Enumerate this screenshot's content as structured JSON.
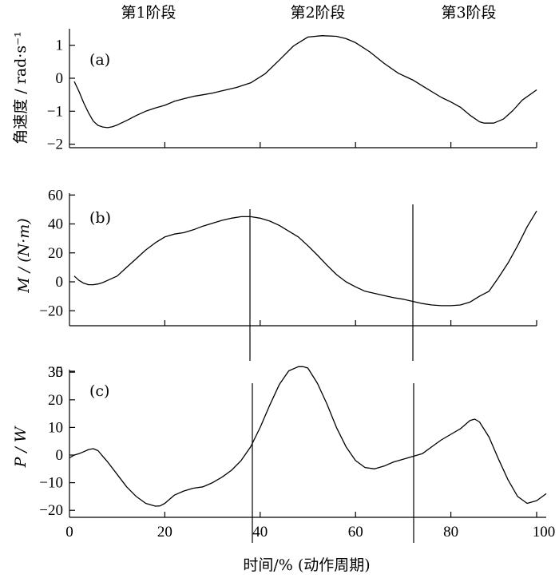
{
  "stage_labels": [
    "第1阶段",
    "第2阶段",
    "第3阶段"
  ],
  "xlabel": "时间/% (动作周期)",
  "chart_data": [
    {
      "type": "line",
      "panel_label": "(a)",
      "ylabel": "角速度 / rad·s⁻¹",
      "xlim": [
        0,
        100
      ],
      "ylim": [
        -2,
        1.5
      ],
      "yticks": [
        -2,
        -1,
        0,
        1
      ],
      "xticks": [
        0,
        20,
        40,
        60,
        80,
        100
      ],
      "x": [
        1,
        2,
        3,
        4,
        5,
        6,
        7,
        8,
        9,
        10,
        12,
        14,
        16,
        18,
        20,
        22,
        24,
        26,
        28,
        30,
        32,
        35,
        38,
        41,
        44,
        47,
        50,
        53,
        56,
        58,
        60,
        63,
        66,
        69,
        72,
        75,
        78,
        80,
        82,
        84,
        86,
        87,
        89,
        91,
        93,
        95,
        98
      ],
      "values": [
        -0.1,
        -0.4,
        -0.75,
        -1.05,
        -1.3,
        -1.43,
        -1.48,
        -1.5,
        -1.47,
        -1.42,
        -1.28,
        -1.13,
        -1.0,
        -0.9,
        -0.82,
        -0.7,
        -0.62,
        -0.55,
        -0.5,
        -0.45,
        -0.38,
        -0.28,
        -0.14,
        0.13,
        0.55,
        0.98,
        1.25,
        1.29,
        1.27,
        1.2,
        1.08,
        0.8,
        0.45,
        0.15,
        -0.05,
        -0.32,
        -0.58,
        -0.72,
        -0.88,
        -1.12,
        -1.32,
        -1.36,
        -1.36,
        -1.24,
        -0.98,
        -0.66,
        -0.35
      ]
    },
    {
      "type": "line",
      "panel_label": "(b)",
      "ylabel": "M / (N·m)",
      "xlim": [
        0,
        100
      ],
      "ylim": [
        -20,
        60
      ],
      "yticks": [
        -20,
        0,
        20,
        40,
        60
      ],
      "xticks": [
        0,
        20,
        40,
        60,
        80,
        100
      ],
      "x": [
        1,
        2,
        3,
        4,
        5,
        6,
        7,
        8,
        10,
        12,
        14,
        16,
        18,
        20,
        22,
        24,
        26,
        28,
        30,
        32,
        34,
        36,
        38,
        40,
        42,
        44,
        46,
        48,
        50,
        52,
        54,
        56,
        58,
        60,
        62,
        64,
        66,
        68,
        70,
        72,
        74,
        76,
        78,
        80,
        82,
        84,
        86,
        88,
        90,
        92,
        94,
        96,
        98
      ],
      "values": [
        4,
        1,
        -1,
        -2,
        -2,
        -1.5,
        -0.5,
        1,
        4,
        10,
        16,
        22,
        27,
        31,
        33,
        34,
        36,
        38.5,
        40.5,
        42.5,
        44,
        45,
        45,
        44,
        42,
        39,
        35,
        31,
        25,
        18.5,
        11.5,
        5,
        0,
        -3.5,
        -6.5,
        -8,
        -9.5,
        -11,
        -12,
        -13.5,
        -15,
        -16,
        -16.5,
        -16.5,
        -16,
        -14,
        -10,
        -6.5,
        3,
        13,
        25,
        38,
        49
      ]
    },
    {
      "type": "line",
      "panel_label": "(c)",
      "ylabel": "P / W",
      "xlim": [
        0,
        100
      ],
      "ylim": [
        -20,
        35
      ],
      "yticks": [
        -20,
        -10,
        0,
        10,
        20,
        30
      ],
      "xticks": [
        0,
        20,
        40,
        60,
        80,
        100
      ],
      "x": [
        0,
        1,
        2,
        3,
        4,
        5,
        6,
        7,
        8,
        10,
        12,
        14,
        16,
        18,
        19,
        20,
        22,
        24,
        26,
        28,
        30,
        32,
        34,
        36,
        38,
        40,
        42,
        44,
        46,
        48,
        49,
        50,
        52,
        54,
        56,
        58,
        60,
        62,
        64,
        66,
        68,
        70,
        72,
        74,
        76,
        78,
        80,
        82,
        84,
        85,
        86,
        88,
        90,
        92,
        94,
        96,
        98,
        100
      ],
      "values": [
        -1,
        0,
        0.5,
        1.2,
        2,
        2.3,
        1.6,
        -0.5,
        -2.5,
        -7,
        -11.5,
        -15,
        -17.5,
        -18.5,
        -18.4,
        -17.5,
        -14.5,
        -13,
        -12,
        -11.5,
        -10,
        -8,
        -5.5,
        -2,
        3,
        10,
        18,
        25.5,
        30.5,
        32,
        32,
        31.5,
        26,
        18.5,
        10,
        3,
        -2,
        -4.5,
        -5,
        -4,
        -2.5,
        -1.5,
        -0.5,
        0.5,
        3,
        5.5,
        7.5,
        9.5,
        12.5,
        13,
        12,
        6.5,
        -1.5,
        -9,
        -15,
        -17.5,
        -16.5,
        -14
      ]
    }
  ]
}
